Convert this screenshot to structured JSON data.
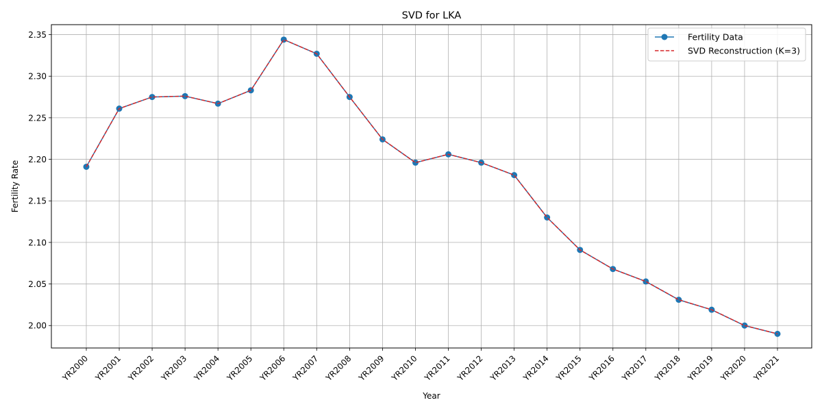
{
  "chart_data": {
    "type": "line",
    "title": "SVD for LKA",
    "xlabel": "Year",
    "ylabel": "Fertility Rate",
    "categories": [
      "YR2000",
      "YR2001",
      "YR2002",
      "YR2003",
      "YR2004",
      "YR2005",
      "YR2006",
      "YR2007",
      "YR2008",
      "YR2009",
      "YR2010",
      "YR2011",
      "YR2012",
      "YR2013",
      "YR2014",
      "YR2015",
      "YR2016",
      "YR2017",
      "YR2018",
      "YR2019",
      "YR2020",
      "YR2021"
    ],
    "ylim": [
      1.973,
      2.362
    ],
    "yticks": [
      "2.00",
      "2.05",
      "2.10",
      "2.15",
      "2.20",
      "2.25",
      "2.30",
      "2.35"
    ],
    "grid": true,
    "legend_position": "top-right",
    "series": [
      {
        "name": "Fertility Data",
        "style": "solid-with-circle-markers",
        "color": "#1f77b4",
        "values": [
          2.191,
          2.261,
          2.275,
          2.276,
          2.267,
          2.283,
          2.344,
          2.327,
          2.275,
          2.224,
          2.196,
          2.206,
          2.196,
          2.181,
          2.13,
          2.091,
          2.068,
          2.053,
          2.031,
          2.019,
          2.0,
          1.99
        ]
      },
      {
        "name": "SVD Reconstruction (K=3)",
        "style": "dashed",
        "color": "#d62728",
        "values": [
          2.191,
          2.261,
          2.275,
          2.276,
          2.267,
          2.283,
          2.344,
          2.327,
          2.275,
          2.224,
          2.196,
          2.206,
          2.196,
          2.181,
          2.13,
          2.091,
          2.068,
          2.053,
          2.031,
          2.019,
          2.0,
          1.99
        ]
      }
    ]
  }
}
